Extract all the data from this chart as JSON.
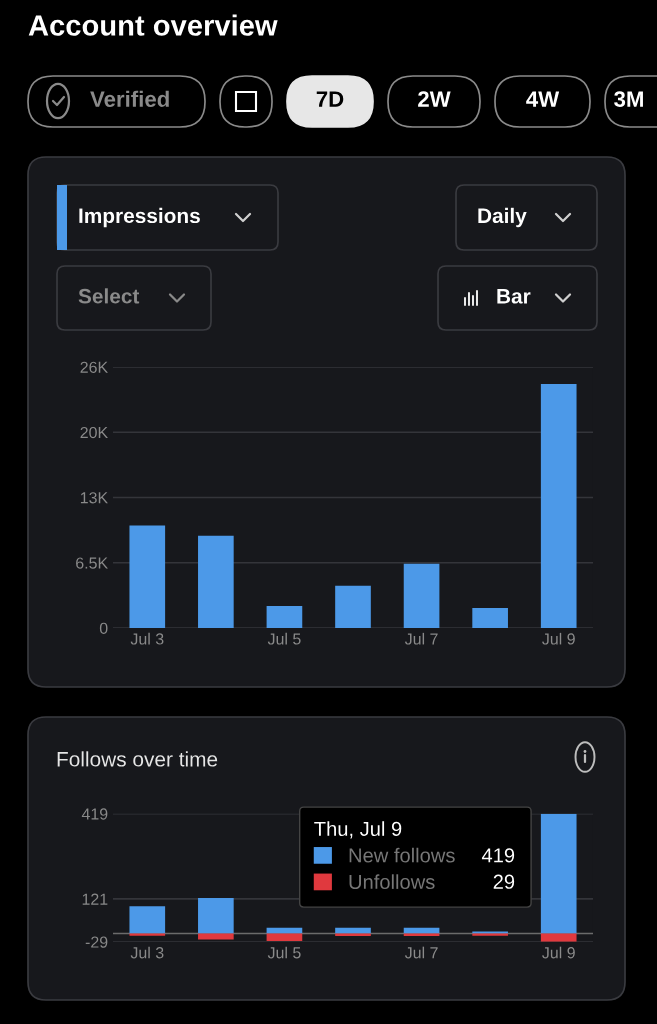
{
  "chart_data": [
    {
      "type": "other",
      "title": "Account overview",
      "annotations": [
        "Verified",
        "7D",
        "2W",
        "4W",
        "3M"
      ]
    },
    {
      "type": "bar",
      "annotations": [
        "Impressions",
        "Daily",
        "Select",
        "Bar"
      ],
      "categories": [
        "Jul 3",
        null,
        "Jul 5",
        null,
        "Jul 7",
        null,
        "Jul 9"
      ],
      "values": [
        10200,
        9200,
        2200,
        4200,
        6400,
        2000,
        24300
      ],
      "color": "#4c99e8",
      "ylim": [
        0,
        26000
      ],
      "yticks": [
        0,
        {
          "value": 6500,
          "label": "6.5K"
        },
        {
          "value": 13000,
          "label": "13K"
        },
        {
          "value": 19500,
          "label": "20K"
        },
        {
          "value": 26000,
          "label": "26K"
        }
      ],
      "grid": "y"
    },
    {
      "type": "bar",
      "title": "Follows over time",
      "stacked": true,
      "categories": [
        "Jul 3",
        null,
        "Jul 5",
        null,
        "Jul 7",
        null,
        "Jul 9"
      ],
      "series": [
        {
          "name": "New follows",
          "color": "#4c99e8",
          "values": [
            95,
            124,
            20,
            20,
            20,
            7,
            419
          ]
        },
        {
          "name": "Unfollows",
          "color": "#e0393e",
          "values": [
            -8,
            -21,
            -26,
            -9,
            -9,
            -8,
            -29
          ]
        }
      ],
      "ylim": [
        -29,
        419
      ],
      "yticks": [
        -29,
        121,
        419
      ],
      "grid": "y",
      "ref_lines": [
        {
          "axis": "y",
          "value": 0,
          "color": "#6b6b6b"
        }
      ],
      "legend": "top right",
      "legend_title": "Thu, Jul 9",
      "annotations": [
        "419",
        "29"
      ]
    }
  ]
}
